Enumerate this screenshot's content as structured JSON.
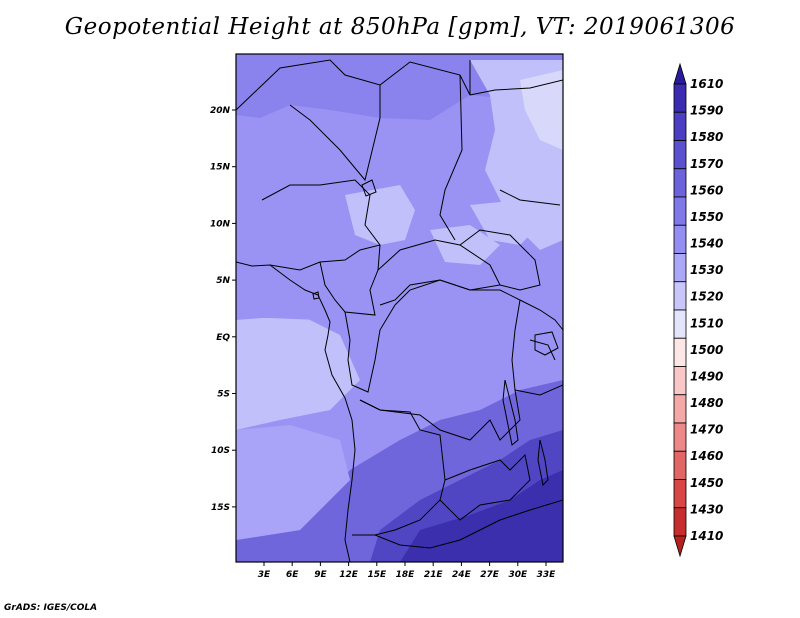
{
  "title": "Geopotential Height at 850hPa [gpm], VT: 2019061306",
  "credit": "GrADS: IGES/COLA",
  "map": {
    "lon_ticks": [
      "3E",
      "6E",
      "9E",
      "12E",
      "15E",
      "18E",
      "21E",
      "24E",
      "27E",
      "30E",
      "33E"
    ],
    "lat_ticks": [
      "20N",
      "15N",
      "10N",
      "5N",
      "EQ",
      "5S",
      "10S",
      "15S"
    ],
    "field_colors": {
      "lightest": "#d8d8fb",
      "light": "#c2c0fa",
      "mid_light": "#a9a4f7",
      "mid": "#9a93f4",
      "mid_dark": "#8a83ee",
      "dark": "#6f66dc",
      "darker": "#5046c4",
      "darkest": "#3b2fae"
    },
    "boundary_color": "#000000"
  },
  "colorbar": {
    "levels": [
      "1610",
      "1590",
      "1580",
      "1570",
      "1560",
      "1550",
      "1540",
      "1530",
      "1520",
      "1510",
      "1500",
      "1490",
      "1480",
      "1470",
      "1460",
      "1450",
      "1430",
      "1410"
    ],
    "colors": [
      "#2a1a9c",
      "#3a2bb0",
      "#4b3ec2",
      "#5a50d0",
      "#6b62dc",
      "#7e78e8",
      "#938ef2",
      "#aba8f7",
      "#c8c6fb",
      "#e4e4fd",
      "#fde6e6",
      "#f9c7c7",
      "#f4a8a8",
      "#ec8888",
      "#e36666",
      "#d84646",
      "#c82d2d",
      "#b52020"
    ]
  }
}
